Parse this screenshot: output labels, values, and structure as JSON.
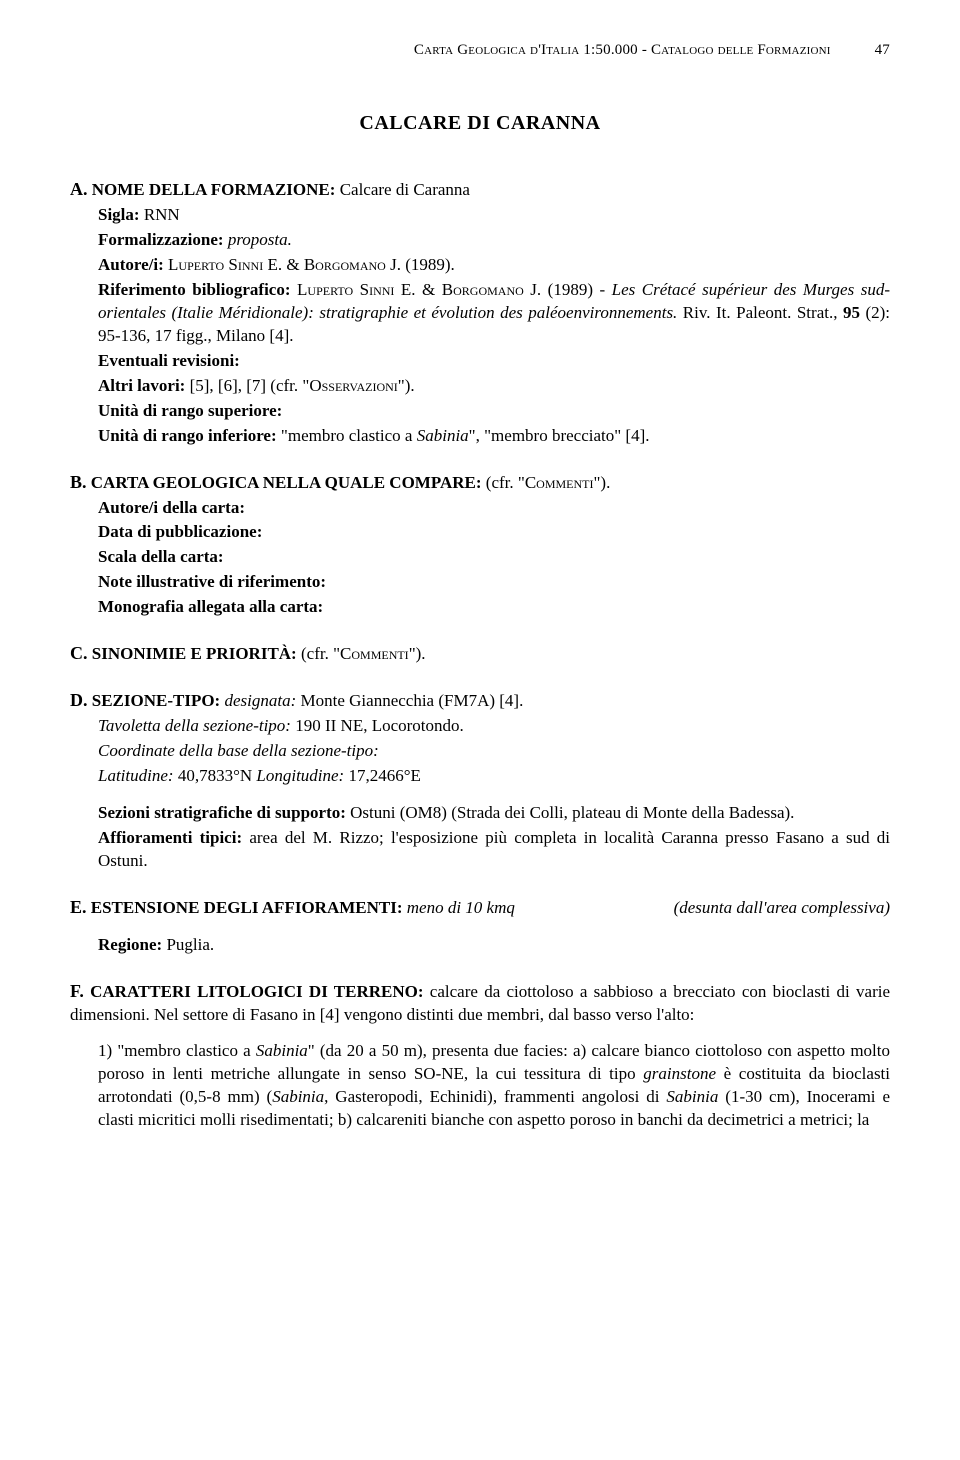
{
  "header": {
    "running_title": "Carta Geologica d'Italia 1:50.000 - Catalogo delle Formazioni",
    "page_number": "47"
  },
  "title": "CALCARE DI CARANNA",
  "A": {
    "label": "A.",
    "heading": "NOME DELLA FORMAZIONE:",
    "heading_value": " Calcare di Caranna",
    "sigla_label": "Sigla:",
    "sigla_value": " RNN",
    "formalizzazione_label": "Formalizzazione:",
    "formalizzazione_value": " proposta.",
    "autore_label": "Autore/i:",
    "autore_value_pre": " ",
    "autore_smallcaps_1": "Luperto Sinni",
    "autore_value_mid": " E. & ",
    "autore_smallcaps_2": "Borgomano",
    "autore_value_post": " J. (1989).",
    "rif_label": "Riferimento bibliografico:",
    "rif_pre": " ",
    "rif_sc_1": "Luperto Sinni",
    "rif_mid1": " E. & ",
    "rif_sc_2": "Borgomano",
    "rif_mid2": " J. (1989) - ",
    "rif_italic": "Les Crétacé supérieur des Murges sud-orientales (Italie Méridionale): stratigraphie et évolution des paléoenvironnements.",
    "rif_tail": " Riv. It. Paleont. Strat., ",
    "rif_vol": "95",
    "rif_tail2": " (2): 95-136, 17 figg., Milano [4].",
    "rev_label": "Eventuali revisioni:",
    "altri_label": "Altri lavori:",
    "altri_value": " [5], [6], [7] (cfr. \"",
    "altri_sc": "Osservazioni",
    "altri_value2": "\").",
    "sup_label": "Unità di rango superiore:",
    "inf_label": "Unità di rango inferiore:",
    "inf_value_pre": " \"membro clastico a ",
    "inf_italic": "Sabinia",
    "inf_value_post": "\", \"membro brecciato\" [4]."
  },
  "B": {
    "label": "B.",
    "heading": "CARTA GEOLOGICA NELLA QUALE COMPARE:",
    "heading_value_pre": " (cfr. \"",
    "heading_sc": "Commenti",
    "heading_value_post": "\").",
    "f1": "Autore/i della carta:",
    "f2": "Data di pubblicazione:",
    "f3": "Scala della carta:",
    "f4": "Note illustrative di riferimento:",
    "f5": "Monografia allegata alla carta:"
  },
  "C": {
    "label": "C.",
    "heading": "SINONIMIE E PRIORITÀ:",
    "value_pre": " (cfr. \"",
    "value_sc": "Commenti",
    "value_post": "\")."
  },
  "D": {
    "label": "D.",
    "heading": "SEZIONE-TIPO:",
    "value_pre": " ",
    "value_italic1": "designata:",
    "value_post1": " Monte Giannecchia (FM7A) [4].",
    "tav_italic": "Tavoletta della sezione-tipo:",
    "tav_value": " 190 II NE, Locorotondo.",
    "coord_italic": "Coordinate della base della sezione-tipo:",
    "lat_italic": "Latitudine:",
    "lat_value": " 40,7833°N    ",
    "lon_italic": "Longitudine:",
    "lon_value": " 17,2466°E",
    "sezioni_label": "Sezioni stratigrafiche di supporto:",
    "sezioni_value": " Ostuni (OM8) (Strada dei Colli, plateau di Monte della Badessa).",
    "aff_label": "Affioramenti tipici:",
    "aff_value": " area del M. Rizzo; l'esposizione più completa in località Caranna presso Fasano a sud di Ostuni."
  },
  "E": {
    "label": "E.",
    "heading": "ESTENSIONE DEGLI AFFIORAMENTI:",
    "value_italic": " meno di 10 kmq",
    "desunta": "(desunta dall'area complessiva)",
    "regione_label": "Regione:",
    "regione_value": " Puglia."
  },
  "F": {
    "label": "F.",
    "heading": "CARATTERI LITOLOGICI DI TERRENO:",
    "value": " calcare da ciottoloso a sabbioso a brecciato con bioclasti di varie dimensioni. Nel settore di Fasano in [4] vengono distinti due membri, dal basso verso l'alto:",
    "para1_pre": "1) \"membro clastico a ",
    "para1_it1": "Sabinia",
    "para1_mid1": "\" (da 20 a 50 m), presenta due facies: a) calcare bianco ciottoloso con aspetto molto poroso in lenti metriche allungate in senso SO-NE, la cui tessitura di tipo ",
    "para1_it2": "grainstone",
    "para1_mid2": " è costituita da bioclasti arrotondati (0,5-8 mm) (",
    "para1_it3": "Sabinia",
    "para1_mid3": ", Gasteropodi, Echinidi), frammenti angolosi di ",
    "para1_it4": "Sabinia",
    "para1_mid4": " (1-30 cm), Inocerami e clasti micritici molli risedimentati; b) calcareniti bianche con aspetto poroso in banchi da decimetrici a metrici; la"
  }
}
